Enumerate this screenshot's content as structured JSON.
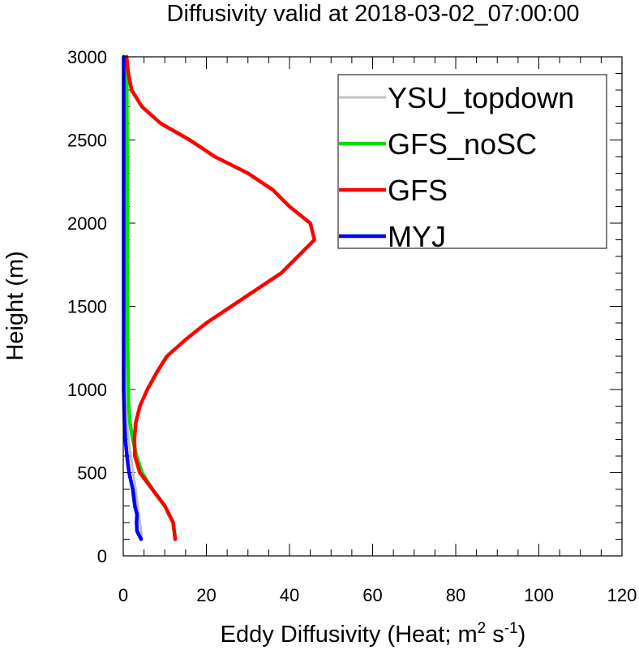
{
  "chart_data": {
    "type": "line",
    "title": "Diffusivity valid at 2018-03-02_07:00:00",
    "xlabel": {
      "prefix": "Eddy Diffusivity (Heat; m",
      "exp1": "2",
      "mid": " s",
      "exp2": "-1",
      "suffix": ")"
    },
    "ylabel": "Height (m)",
    "xlim": [
      0,
      120
    ],
    "ylim": [
      0,
      3000
    ],
    "xticks": [
      0,
      20,
      40,
      60,
      80,
      100,
      120
    ],
    "yticks": [
      0,
      500,
      1000,
      1500,
      2000,
      2500,
      3000
    ],
    "x_minor_step": 5,
    "y_minor_step": 100,
    "grid": false,
    "legend_placement": "top-right",
    "series": [
      {
        "name": "YSU_topdown",
        "color": "#c0c0c0",
        "points": [
          [
            4.5,
            100
          ],
          [
            4.3,
            150
          ],
          [
            4.0,
            200
          ],
          [
            3.5,
            300
          ],
          [
            3.0,
            400
          ],
          [
            2.4,
            500
          ],
          [
            1.8,
            600
          ],
          [
            1.3,
            700
          ],
          [
            0.9,
            800
          ],
          [
            0.6,
            900
          ],
          [
            0.5,
            1000
          ],
          [
            0.4,
            1200
          ],
          [
            0.35,
            1500
          ],
          [
            0.3,
            2000
          ],
          [
            0.3,
            2500
          ],
          [
            0.3,
            3000
          ]
        ]
      },
      {
        "name": "GFS_noSC",
        "color": "#00e000",
        "points": [
          [
            12.5,
            100
          ],
          [
            12.0,
            200
          ],
          [
            10.0,
            300
          ],
          [
            7.0,
            400
          ],
          [
            4.5,
            500
          ],
          [
            3.2,
            600
          ],
          [
            2.3,
            700
          ],
          [
            1.6,
            800
          ],
          [
            1.3,
            900
          ],
          [
            1.2,
            1000
          ],
          [
            1.1,
            1200
          ],
          [
            1.0,
            1500
          ],
          [
            1.0,
            2000
          ],
          [
            0.9,
            2500
          ],
          [
            0.8,
            3000
          ]
        ]
      },
      {
        "name": "GFS",
        "color": "#ff0000",
        "points": [
          [
            12.5,
            100
          ],
          [
            12.0,
            200
          ],
          [
            10.0,
            300
          ],
          [
            7.0,
            400
          ],
          [
            4.0,
            500
          ],
          [
            2.8,
            600
          ],
          [
            2.7,
            700
          ],
          [
            3.0,
            800
          ],
          [
            4.0,
            900
          ],
          [
            5.8,
            1000
          ],
          [
            8.0,
            1100
          ],
          [
            10.5,
            1200
          ],
          [
            15.0,
            1300
          ],
          [
            20.0,
            1400
          ],
          [
            26.0,
            1500
          ],
          [
            32.0,
            1600
          ],
          [
            38.0,
            1700
          ],
          [
            42.0,
            1800
          ],
          [
            46.0,
            1900
          ],
          [
            45.0,
            2000
          ],
          [
            40.0,
            2100
          ],
          [
            36.0,
            2200
          ],
          [
            30.0,
            2300
          ],
          [
            22.0,
            2400
          ],
          [
            16.0,
            2500
          ],
          [
            9.0,
            2600
          ],
          [
            4.5,
            2700
          ],
          [
            2.0,
            2800
          ],
          [
            1.2,
            2900
          ],
          [
            0.8,
            3000
          ]
        ]
      },
      {
        "name": "MYJ",
        "color": "#0000ff",
        "points": [
          [
            4.3,
            100
          ],
          [
            3.3,
            150
          ],
          [
            3.2,
            200
          ],
          [
            3.3,
            250
          ],
          [
            2.8,
            300
          ],
          [
            2.3,
            400
          ],
          [
            1.4,
            500
          ],
          [
            0.9,
            600
          ],
          [
            0.5,
            700
          ],
          [
            0.3,
            800
          ],
          [
            0.2,
            900
          ],
          [
            0.1,
            1000
          ],
          [
            0.1,
            1500
          ],
          [
            0.1,
            2000
          ],
          [
            0.1,
            2500
          ],
          [
            0.1,
            3000
          ]
        ]
      }
    ]
  }
}
